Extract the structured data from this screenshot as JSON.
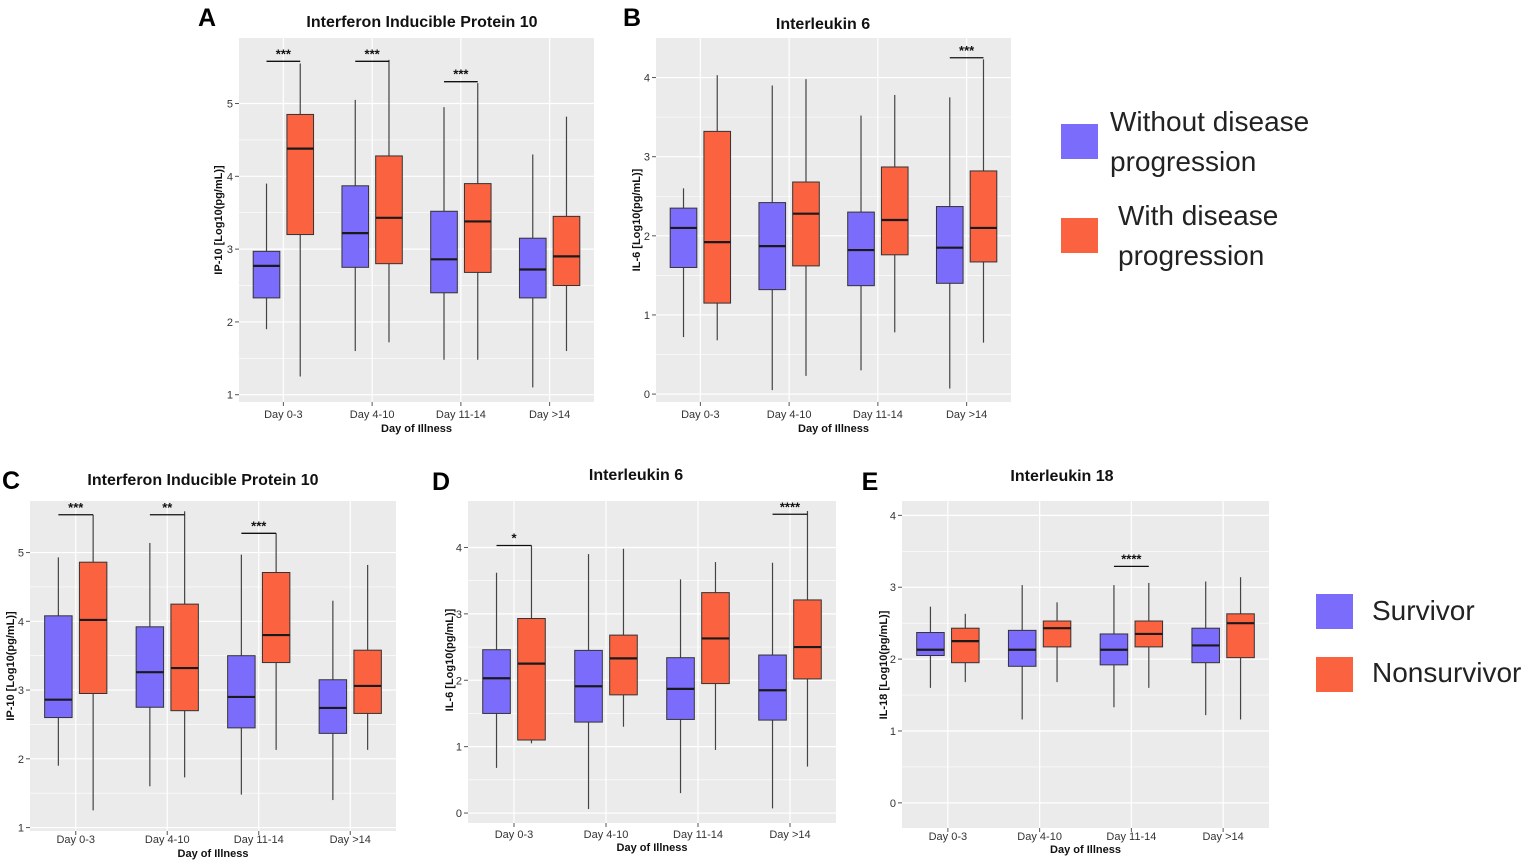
{
  "colors": {
    "group1": "#7B6CFC",
    "group2": "#FB6240",
    "panel_bg": "#EBEBEB",
    "grid": "#FFFFFF",
    "median": "#1A1A1A",
    "whisker": "#444444"
  },
  "legends": [
    {
      "entries": [
        {
          "lines": [
            "Without disease",
            "progression"
          ]
        },
        {
          "lines": [
            "With disease",
            "progression"
          ]
        }
      ]
    },
    {
      "entries": [
        {
          "lines": [
            "Survivor"
          ]
        },
        {
          "lines": [
            "Nonsurvivor"
          ]
        }
      ]
    }
  ],
  "chart_data": [
    {
      "panel": "A",
      "type": "box",
      "title": "Interferon Inducible Protein 10",
      "xlabel": "Day of Illness",
      "ylabel": "IP-10 [Log10(pg/mL)]",
      "ylim": [
        0.9,
        5.9
      ],
      "yticks": [
        1,
        2,
        3,
        4,
        5
      ],
      "categories": [
        "Day 0-3",
        "Day 4-10",
        "Day 11-14",
        "Day >14"
      ],
      "series": [
        {
          "name": "Without disease progression",
          "boxes": [
            {
              "min": 1.9,
              "q1": 2.33,
              "median": 2.77,
              "q3": 2.97,
              "max": 3.9
            },
            {
              "min": 1.6,
              "q1": 2.75,
              "median": 3.22,
              "q3": 3.87,
              "max": 5.05
            },
            {
              "min": 1.48,
              "q1": 2.4,
              "median": 2.86,
              "q3": 3.52,
              "max": 4.95
            },
            {
              "min": 1.1,
              "q1": 2.33,
              "median": 2.72,
              "q3": 3.15,
              "max": 4.3
            }
          ]
        },
        {
          "name": "With disease progression",
          "boxes": [
            {
              "min": 1.25,
              "q1": 3.2,
              "median": 4.38,
              "q3": 4.85,
              "max": 5.55
            },
            {
              "min": 1.72,
              "q1": 2.8,
              "median": 3.43,
              "q3": 4.28,
              "max": 5.6
            },
            {
              "min": 1.48,
              "q1": 2.68,
              "median": 3.38,
              "q3": 3.9,
              "max": 5.28
            },
            {
              "min": 1.6,
              "q1": 2.5,
              "median": 2.9,
              "q3": 3.45,
              "max": 4.82
            }
          ]
        }
      ],
      "significance": [
        {
          "category": "Day 0-3",
          "label": "***",
          "y": 5.58
        },
        {
          "category": "Day 4-10",
          "label": "***",
          "y": 5.58
        },
        {
          "category": "Day 11-14",
          "label": "***",
          "y": 5.3
        }
      ]
    },
    {
      "panel": "B",
      "type": "box",
      "title": "Interleukin 6",
      "xlabel": "Day of Illness",
      "ylabel": "IL-6 [Log10(pg/mL)]",
      "ylim": [
        -0.1,
        4.5
      ],
      "yticks": [
        0,
        1,
        2,
        3,
        4
      ],
      "categories": [
        "Day 0-3",
        "Day 4-10",
        "Day 11-14",
        "Day >14"
      ],
      "series": [
        {
          "name": "Without disease progression",
          "boxes": [
            {
              "min": 0.72,
              "q1": 1.6,
              "median": 2.1,
              "q3": 2.35,
              "max": 2.6
            },
            {
              "min": 0.05,
              "q1": 1.32,
              "median": 1.87,
              "q3": 2.42,
              "max": 3.9
            },
            {
              "min": 0.3,
              "q1": 1.37,
              "median": 1.82,
              "q3": 2.3,
              "max": 3.52
            },
            {
              "min": 0.07,
              "q1": 1.4,
              "median": 1.85,
              "q3": 2.37,
              "max": 3.75
            }
          ]
        },
        {
          "name": "With disease progression",
          "boxes": [
            {
              "min": 0.68,
              "q1": 1.15,
              "median": 1.92,
              "q3": 3.32,
              "max": 4.03
            },
            {
              "min": 0.23,
              "q1": 1.62,
              "median": 2.28,
              "q3": 2.68,
              "max": 3.98
            },
            {
              "min": 0.78,
              "q1": 1.76,
              "median": 2.2,
              "q3": 2.87,
              "max": 3.78
            },
            {
              "min": 0.65,
              "q1": 1.67,
              "median": 2.1,
              "q3": 2.82,
              "max": 4.23
            }
          ]
        }
      ],
      "significance": [
        {
          "category": "Day >14",
          "label": "***",
          "y": 4.25
        }
      ]
    },
    {
      "panel": "C",
      "type": "box",
      "title": "Interferon Inducible Protein 10",
      "xlabel": "Day of Illness",
      "ylabel": "IP-10 [Log10(pg/mL)]",
      "ylim": [
        0.95,
        5.75
      ],
      "yticks": [
        1,
        2,
        3,
        4,
        5
      ],
      "categories": [
        "Day 0-3",
        "Day 4-10",
        "Day 11-14",
        "Day >14"
      ],
      "series": [
        {
          "name": "Survivor",
          "boxes": [
            {
              "min": 1.9,
              "q1": 2.6,
              "median": 2.86,
              "q3": 4.08,
              "max": 4.93
            },
            {
              "min": 1.6,
              "q1": 2.75,
              "median": 3.26,
              "q3": 3.92,
              "max": 5.14
            },
            {
              "min": 1.48,
              "q1": 2.45,
              "median": 2.9,
              "q3": 3.5,
              "max": 4.97
            },
            {
              "min": 1.4,
              "q1": 2.37,
              "median": 2.74,
              "q3": 3.15,
              "max": 4.3
            }
          ]
        },
        {
          "name": "Nonsurvivor",
          "boxes": [
            {
              "min": 1.25,
              "q1": 2.95,
              "median": 4.02,
              "q3": 4.86,
              "max": 5.55
            },
            {
              "min": 1.73,
              "q1": 2.7,
              "median": 3.32,
              "q3": 4.25,
              "max": 5.6
            },
            {
              "min": 2.13,
              "q1": 3.4,
              "median": 3.8,
              "q3": 4.71,
              "max": 5.28
            },
            {
              "min": 2.13,
              "q1": 2.66,
              "median": 3.06,
              "q3": 3.58,
              "max": 4.82
            }
          ]
        }
      ],
      "significance": [
        {
          "category": "Day 0-3",
          "label": "***",
          "y": 5.55
        },
        {
          "category": "Day 4-10",
          "label": "**",
          "y": 5.55
        },
        {
          "category": "Day 11-14",
          "label": "***",
          "y": 5.28
        }
      ]
    },
    {
      "panel": "D",
      "type": "box",
      "title": "Interleukin 6",
      "xlabel": "Day of Illness",
      "ylabel": "IL-6 [Log10(pg/mL)]",
      "ylim": [
        -0.15,
        4.7
      ],
      "yticks": [
        0,
        1,
        2,
        3,
        4
      ],
      "categories": [
        "Day 0-3",
        "Day 4-10",
        "Day 11-14",
        "Day >14"
      ],
      "series": [
        {
          "name": "Survivor",
          "boxes": [
            {
              "min": 0.68,
              "q1": 1.5,
              "median": 2.03,
              "q3": 2.46,
              "max": 3.62
            },
            {
              "min": 0.06,
              "q1": 1.37,
              "median": 1.91,
              "q3": 2.45,
              "max": 3.9
            },
            {
              "min": 0.3,
              "q1": 1.41,
              "median": 1.87,
              "q3": 2.34,
              "max": 3.52
            },
            {
              "min": 0.07,
              "q1": 1.4,
              "median": 1.85,
              "q3": 2.38,
              "max": 3.77
            }
          ]
        },
        {
          "name": "Nonsurvivor",
          "boxes": [
            {
              "min": 1.05,
              "q1": 1.1,
              "median": 2.25,
              "q3": 2.93,
              "max": 4.03
            },
            {
              "min": 1.3,
              "q1": 1.78,
              "median": 2.33,
              "q3": 2.68,
              "max": 3.98
            },
            {
              "min": 0.95,
              "q1": 1.95,
              "median": 2.63,
              "q3": 3.32,
              "max": 3.78
            },
            {
              "min": 0.7,
              "q1": 2.02,
              "median": 2.5,
              "q3": 3.21,
              "max": 4.55
            }
          ]
        }
      ],
      "significance": [
        {
          "category": "Day 0-3",
          "label": "*",
          "y": 4.03
        },
        {
          "category": "Day >14",
          "label": "****",
          "y": 4.5
        }
      ]
    },
    {
      "panel": "E",
      "type": "box",
      "title": "Interleukin 18",
      "xlabel": "Day of Illness",
      "ylabel": "IL-18 [Log10(pg/mL)]",
      "ylim": [
        -0.35,
        4.2
      ],
      "yticks": [
        0,
        1,
        2,
        3,
        4
      ],
      "categories": [
        "Day 0-3",
        "Day 4-10",
        "Day 11-14",
        "Day >14"
      ],
      "series": [
        {
          "name": "Survivor",
          "boxes": [
            {
              "min": 1.6,
              "q1": 2.05,
              "median": 2.13,
              "q3": 2.37,
              "max": 2.73
            },
            {
              "min": 1.16,
              "q1": 1.9,
              "median": 2.13,
              "q3": 2.4,
              "max": 3.03
            },
            {
              "min": 1.33,
              "q1": 1.92,
              "median": 2.13,
              "q3": 2.35,
              "max": 3.03
            },
            {
              "min": 1.22,
              "q1": 1.95,
              "median": 2.19,
              "q3": 2.43,
              "max": 3.08
            }
          ]
        },
        {
          "name": "Nonsurvivor",
          "boxes": [
            {
              "min": 1.68,
              "q1": 1.95,
              "median": 2.25,
              "q3": 2.43,
              "max": 2.63
            },
            {
              "min": 1.68,
              "q1": 2.17,
              "median": 2.43,
              "q3": 2.53,
              "max": 2.79
            },
            {
              "min": 1.6,
              "q1": 2.17,
              "median": 2.35,
              "q3": 2.53,
              "max": 3.06
            },
            {
              "min": 1.16,
              "q1": 2.02,
              "median": 2.5,
              "q3": 2.63,
              "max": 3.14
            }
          ]
        }
      ],
      "significance": [
        {
          "category": "Day 11-14",
          "label": "****",
          "y": 3.29
        }
      ]
    }
  ]
}
